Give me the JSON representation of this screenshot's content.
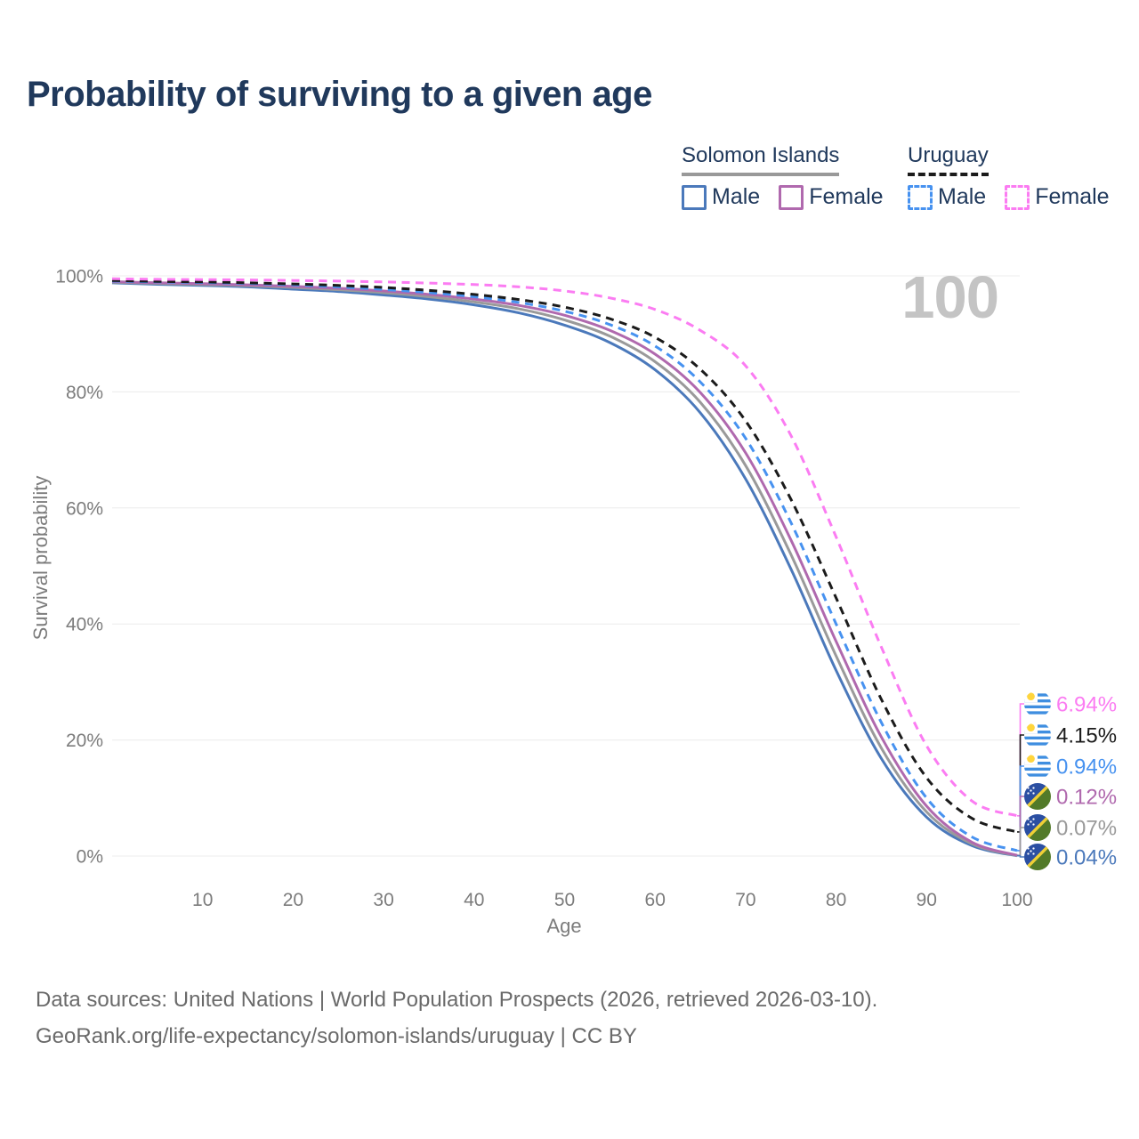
{
  "title": "Probability of surviving to a given age",
  "watermark": "100",
  "legend": {
    "groups": [
      {
        "country": "Solomon Islands",
        "line_style": "solid",
        "line_color": "#999999",
        "items": [
          {
            "label": "Male",
            "color": "#4b79bb",
            "dashed": false
          },
          {
            "label": "Female",
            "color": "#b069ae",
            "dashed": false
          }
        ]
      },
      {
        "country": "Uruguay",
        "line_style": "dashed",
        "line_color": "#1b1b1b",
        "items": [
          {
            "label": "Male",
            "color": "#4792f0",
            "dashed": true
          },
          {
            "label": "Female",
            "color": "#fb7cf2",
            "dashed": true
          }
        ]
      }
    ]
  },
  "chart_data": {
    "type": "line",
    "title": "Probability of surviving to a given age",
    "xlabel": "Age",
    "ylabel": "Survival probability",
    "ylim": [
      0,
      100
    ],
    "grid": "horizontal",
    "x": [
      0,
      5,
      10,
      15,
      20,
      25,
      30,
      35,
      40,
      45,
      50,
      55,
      60,
      65,
      70,
      75,
      80,
      85,
      90,
      95,
      100
    ],
    "xticks": [
      10,
      20,
      30,
      40,
      50,
      60,
      70,
      80,
      90,
      100
    ],
    "yticks": [
      {
        "value": 0,
        "label": "0%"
      },
      {
        "value": 20,
        "label": "20%"
      },
      {
        "value": 40,
        "label": "40%"
      },
      {
        "value": 60,
        "label": "60%"
      },
      {
        "value": 80,
        "label": "80%"
      },
      {
        "value": 100,
        "label": "100%"
      }
    ],
    "series": [
      {
        "name": "Solomon Islands Male",
        "country": "Solomon Islands",
        "sex": "Male",
        "color": "#4b79bb",
        "dash": false,
        "flag": "solomon-islands",
        "end_label": "0.04%",
        "values": [
          98.8,
          98.55,
          98.35,
          98.1,
          97.7,
          97.3,
          96.7,
          96.0,
          95.0,
          93.6,
          91.5,
          88.5,
          83.8,
          76.4,
          65.0,
          49.5,
          32.0,
          16.8,
          6.7,
          1.8,
          0.04
        ]
      },
      {
        "name": "Solomon Islands Both sexes",
        "country": "Solomon Islands",
        "sex": "Both sexes",
        "color": "#9a9a9a",
        "dash": false,
        "flag": "solomon-islands",
        "end_label": "0.07%",
        "values": [
          98.9,
          98.7,
          98.5,
          98.3,
          98.0,
          97.6,
          97.1,
          96.4,
          95.5,
          94.3,
          92.4,
          89.6,
          85.2,
          78.2,
          67.3,
          52.0,
          34.5,
          18.6,
          7.6,
          2.1,
          0.07
        ]
      },
      {
        "name": "Solomon Islands Female",
        "country": "Solomon Islands",
        "sex": "Female",
        "color": "#b069ae",
        "dash": false,
        "flag": "solomon-islands",
        "end_label": "0.12%",
        "values": [
          99.0,
          98.8,
          98.65,
          98.45,
          98.2,
          97.85,
          97.4,
          96.8,
          96.0,
          94.9,
          93.2,
          90.6,
          86.5,
          79.9,
          69.5,
          54.5,
          37.0,
          20.5,
          8.6,
          2.4,
          0.12
        ]
      },
      {
        "name": "Uruguay Male",
        "country": "Uruguay",
        "sex": "Male",
        "color": "#4792f0",
        "dash": true,
        "flag": "uruguay",
        "end_label": "0.94%",
        "values": [
          99.1,
          98.95,
          98.85,
          98.7,
          98.45,
          98.1,
          97.65,
          97.1,
          96.4,
          95.4,
          93.9,
          91.6,
          87.9,
          81.7,
          72.0,
          57.5,
          40.0,
          23.0,
          10.0,
          3.3,
          0.94
        ]
      },
      {
        "name": "Uruguay Both sexes",
        "country": "Uruguay",
        "sex": "Both sexes",
        "color": "#1b1b1b",
        "dash": true,
        "flag": "uruguay",
        "end_label": "4.15%",
        "values": [
          99.2,
          99.05,
          98.95,
          98.8,
          98.6,
          98.35,
          98.0,
          97.5,
          96.8,
          95.9,
          94.6,
          92.6,
          89.4,
          83.9,
          75.0,
          61.5,
          44.5,
          27.0,
          13.5,
          6.5,
          4.15
        ]
      },
      {
        "name": "Uruguay Female",
        "country": "Uruguay",
        "sex": "Female",
        "color": "#fb7cf2",
        "dash": true,
        "flag": "uruguay",
        "end_label": "6.94%",
        "values": [
          99.5,
          99.4,
          99.35,
          99.3,
          99.2,
          99.1,
          98.95,
          98.75,
          98.5,
          98.1,
          97.4,
          96.2,
          94.2,
          90.6,
          84.5,
          72.5,
          55.0,
          36.0,
          19.0,
          9.5,
          6.94
        ]
      }
    ]
  },
  "footer": {
    "line1": "Data sources: United Nations | World Population Prospects (2026, retrieved 2026-03-10).",
    "line2": "GeoRank.org/life-expectancy/solomon-islands/uruguay | CC BY"
  }
}
